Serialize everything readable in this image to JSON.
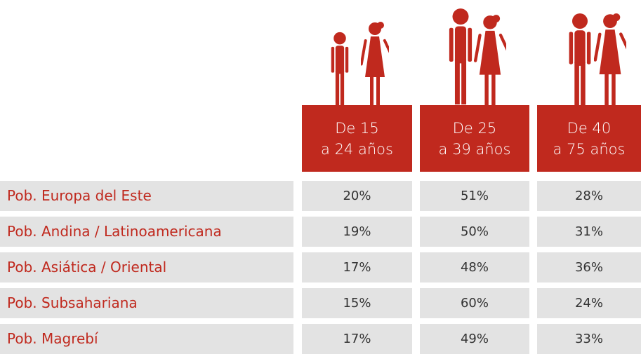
{
  "table": {
    "columns": [
      [
        "De 15",
        "a 24 años"
      ],
      [
        "De 25",
        "a 39 años"
      ],
      [
        "De 40",
        "a 75 años"
      ]
    ],
    "rows": [
      [
        "Pob. Europa del Este",
        "20%",
        "51%",
        "28%"
      ],
      [
        "Pob. Andina / Latinoamericana",
        "19%",
        "50%",
        "31%"
      ],
      [
        "Pob. Asiática / Oriental",
        "17%",
        "48%",
        "36%"
      ],
      [
        "Pob. Subsahariana",
        "15%",
        "60%",
        "24%"
      ],
      [
        "Pob. Magrebí",
        "17%",
        "49%",
        "33%"
      ]
    ]
  }
}
